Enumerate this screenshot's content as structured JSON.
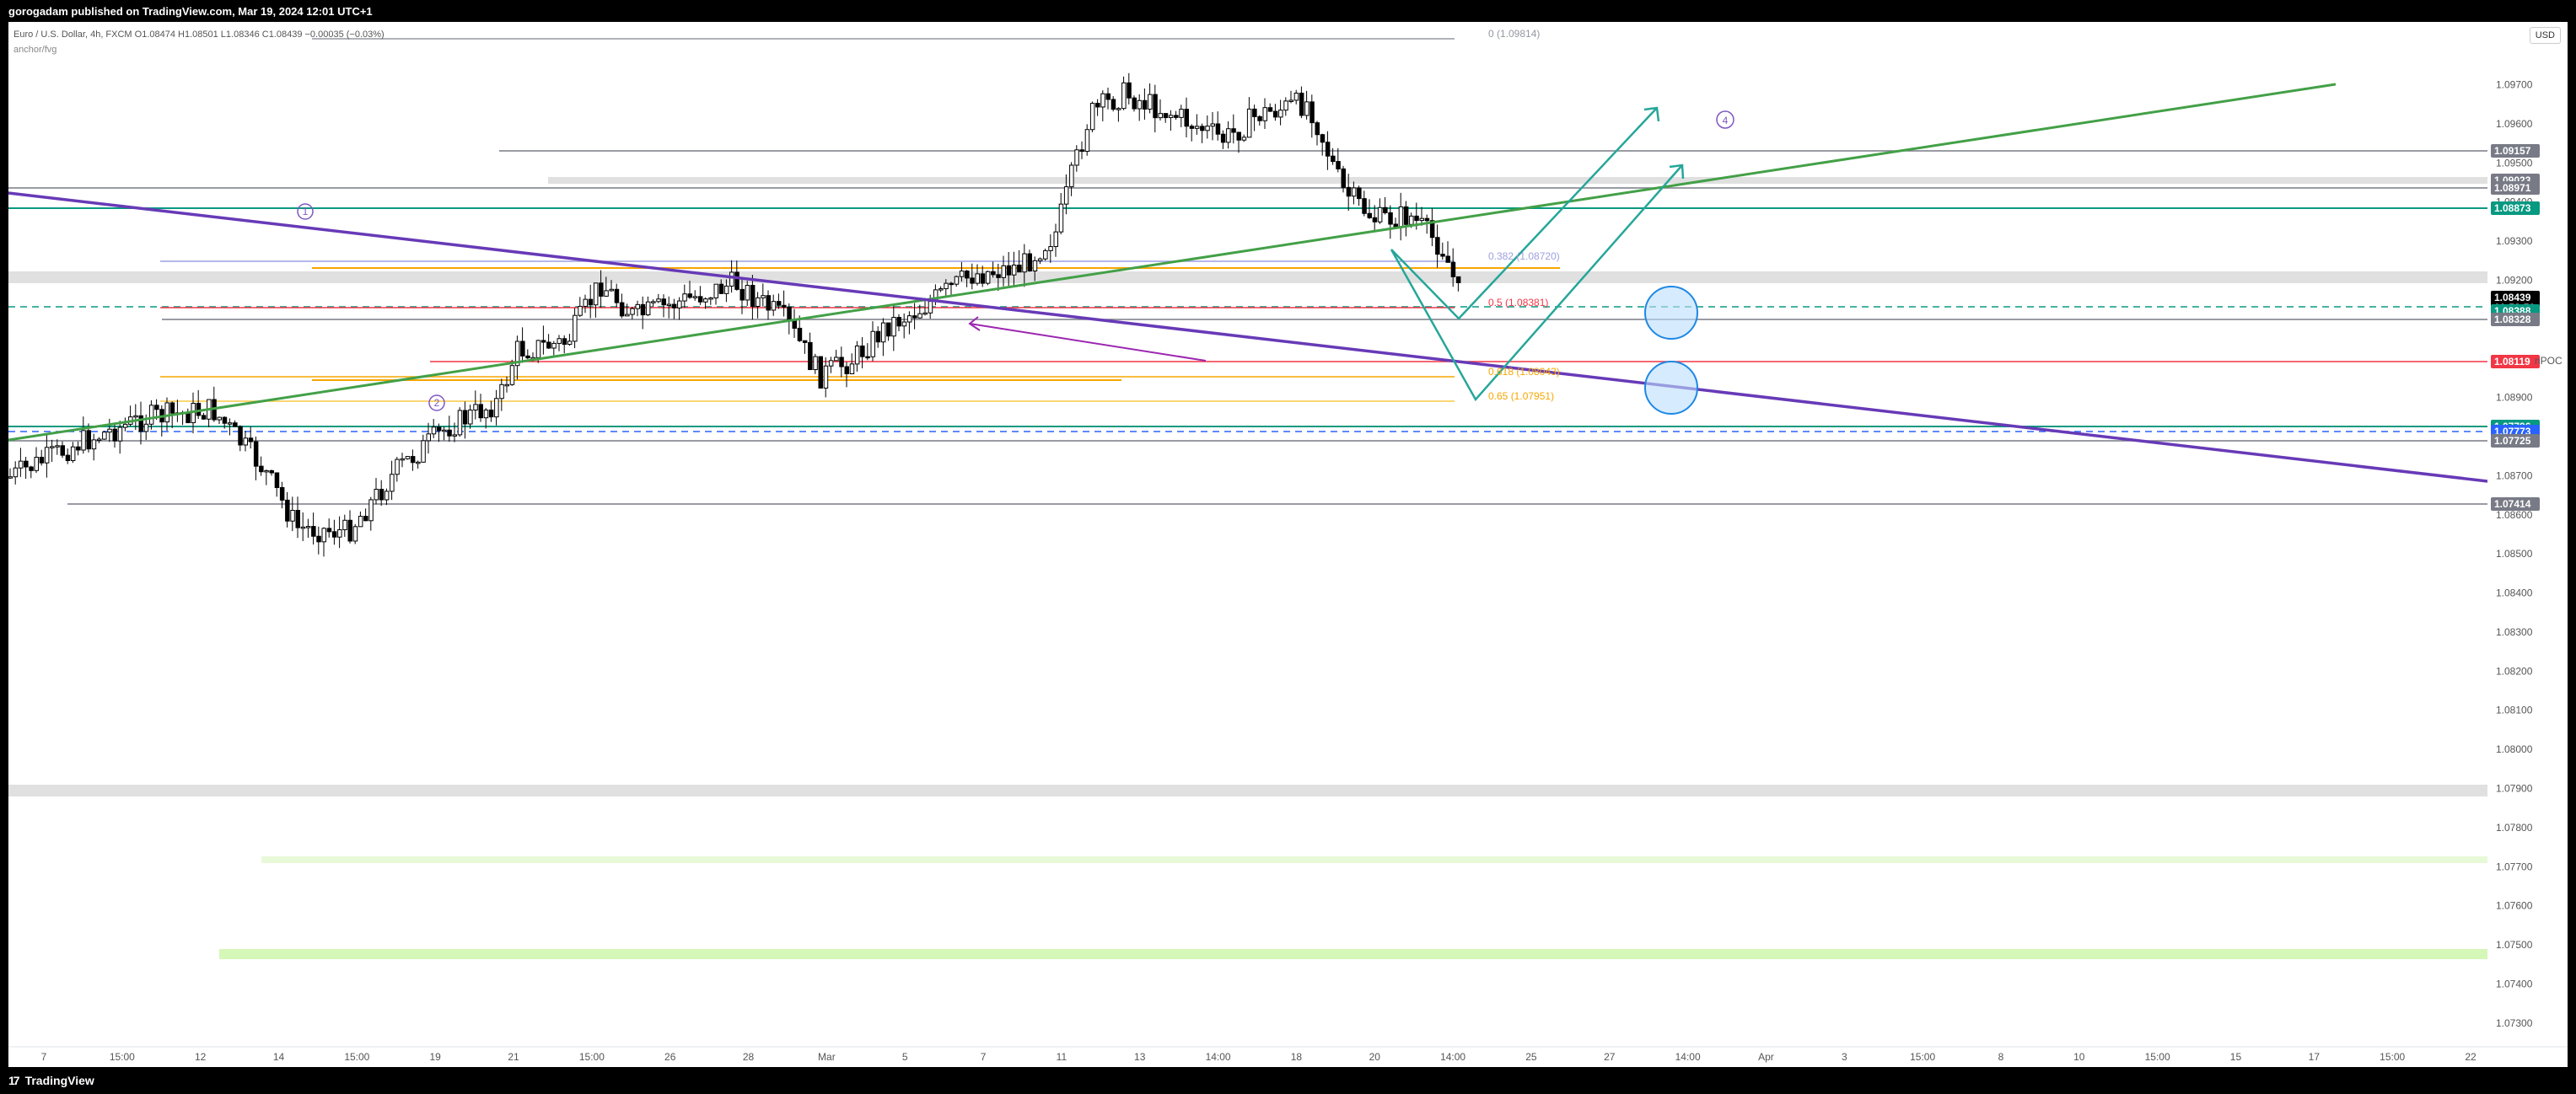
{
  "header": {
    "published": "gorogadam published on TradingView.com, Mar 19, 2024 12:01 UTC+1"
  },
  "legend": {
    "symbol": "Euro / U.S. Dollar, 4h, FXCM",
    "ohlc": "O1.08474 H1.08501 L1.08346 C1.08439 −0.00035 (−0.03%)",
    "indicator": "anchor/fvg"
  },
  "currency_button": "USD",
  "brand": "TradingView",
  "price_axis": {
    "ticks": [
      "1.09700",
      "1.09600",
      "1.09500",
      "1.09400",
      "1.09300",
      "1.09200",
      "1.09100",
      "1.09000",
      "1.08900",
      "1.08800",
      "1.08700",
      "1.08600",
      "1.08500",
      "1.08400",
      "1.08300",
      "1.08200",
      "1.08100",
      "1.08000",
      "1.07900",
      "1.07800",
      "1.07700",
      "1.07600",
      "1.07500",
      "1.07400",
      "1.07300"
    ],
    "tags": [
      {
        "label": "1.09157",
        "color": "#787b86"
      },
      {
        "label": "1.09023",
        "color": "#787b86"
      },
      {
        "label": "1.08971",
        "color": "#787b86"
      },
      {
        "label": "1.08873",
        "color": "#089981"
      },
      {
        "label": "1.08439",
        "color": "#000000"
      },
      {
        "label": "01:58:56",
        "color": "#000000"
      },
      {
        "label": "1.08388",
        "color": "#089981"
      },
      {
        "label": "1.08328",
        "color": "#787b86"
      },
      {
        "label": "1.08119",
        "color": "#f23645"
      },
      {
        "label": "1.07796",
        "color": "#089981"
      },
      {
        "label": "1.07773",
        "color": "#2962ff"
      },
      {
        "label": "1.07725",
        "color": "#787b86"
      },
      {
        "label": "1.07414",
        "color": "#787b86"
      }
    ],
    "npoc_label": "nPOC"
  },
  "time_axis": [
    "7",
    "15:00",
    "12",
    "14",
    "15:00",
    "19",
    "21",
    "15:00",
    "26",
    "28",
    "Mar",
    "5",
    "7",
    "11",
    "13",
    "14:00",
    "18",
    "20",
    "14:00",
    "25",
    "27",
    "14:00",
    "Apr",
    "3",
    "15:00",
    "8",
    "10",
    "15:00",
    "15",
    "17",
    "15:00",
    "22"
  ],
  "fib_levels": [
    {
      "label": "0 (1.09814)",
      "color": "#9598a1"
    },
    {
      "label": "0.382 (1.08720)",
      "color": "#9c9fe0"
    },
    {
      "label": "0.5 (1.08381)",
      "color": "#f23645"
    },
    {
      "label": "0.618 (1.08043)",
      "color": "#f7a600"
    },
    {
      "label": "0.65 (1.07951)",
      "color": "#f7a600"
    }
  ],
  "wave_labels": [
    "1",
    "2",
    "4"
  ],
  "chart_data": {
    "type": "candlestick",
    "symbol": "EURUSD",
    "timeframe": "4h",
    "ylim": [
      1.0725,
      1.0985
    ],
    "last_price": 1.08439,
    "open": 1.08474,
    "high": 1.08501,
    "low": 1.08346,
    "close": 1.08439,
    "key_levels": [
      1.09157,
      1.09023,
      1.08971,
      1.08873,
      1.08388,
      1.08328,
      1.08119,
      1.07796,
      1.07773,
      1.07725,
      1.07414
    ]
  },
  "colors": {
    "bull": "#ffffff",
    "bear": "#000000",
    "green_trend": "#43a047",
    "purple_trend": "#673ab7",
    "teal_projection": "#26a69a",
    "gray_zone": "#e0e0e0",
    "lime_zone": "#c8f7a8"
  }
}
